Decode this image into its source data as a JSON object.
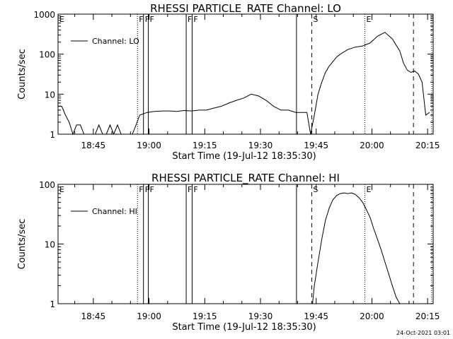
{
  "chart_data": [
    {
      "type": "line",
      "title": "RHESSI PARTICLE_RATE Channel: LO",
      "xlabel": "Start Time (19-Jul-12 18:35:30)",
      "ylabel": "Counts/sec",
      "log_y": true,
      "ylim": [
        1,
        1000
      ],
      "xlim_minutes": [
        0,
        101
      ],
      "x_ticks": [
        "18:45",
        "19:00",
        "19:15",
        "19:30",
        "19:45",
        "20:00",
        "20:15"
      ],
      "y_ticks": [
        "1",
        "10",
        "100",
        "1000"
      ],
      "legend": "Channel: LO",
      "legend_position": "top-left",
      "markers": [
        {
          "label": "E",
          "t": 0.0,
          "style": "none"
        },
        {
          "label": "F",
          "t": 21.4,
          "style": "dotted"
        },
        {
          "label": "F",
          "t": 23.0,
          "style": "solid"
        },
        {
          "label": "F",
          "t": 24.3,
          "style": "solid"
        },
        {
          "label": "F",
          "t": 34.5,
          "style": "solid"
        },
        {
          "label": "F",
          "t": 36.1,
          "style": "solid"
        },
        {
          "label": "",
          "t": 64.2,
          "style": "solid"
        },
        {
          "label": "S",
          "t": 68.3,
          "style": "dashed"
        },
        {
          "label": "E",
          "t": 82.6,
          "style": "dotted"
        },
        {
          "label": "",
          "t": 95.7,
          "style": "dashed"
        },
        {
          "label": "",
          "t": 100.6,
          "style": "dotted"
        }
      ],
      "series": [
        {
          "x": [
            0,
            1,
            2,
            3,
            4,
            5,
            6,
            7,
            8,
            9,
            10,
            11,
            12,
            13,
            14,
            15,
            16,
            17,
            18,
            19,
            20,
            21,
            22,
            24,
            26,
            28,
            30,
            32,
            34,
            36,
            38,
            40,
            42,
            44,
            46,
            48,
            50,
            52,
            54,
            56,
            58,
            60,
            62,
            64,
            66,
            67,
            68,
            69,
            70,
            71,
            72,
            73,
            74,
            75,
            76,
            78,
            80,
            82,
            84,
            86,
            88,
            90,
            92,
            93,
            94,
            95,
            96,
            97,
            98,
            99,
            100
          ],
          "y": [
            5,
            5,
            3,
            2,
            1,
            1.7,
            1.7,
            1,
            1,
            1,
            1,
            1.7,
            1,
            1,
            1.7,
            1,
            1.7,
            1,
            1,
            1,
            1,
            1.7,
            3,
            3.5,
            3.7,
            3.8,
            3.8,
            3.7,
            3.9,
            3.8,
            4,
            4,
            4.5,
            5,
            6,
            7,
            8,
            10,
            9,
            7,
            5,
            4,
            4,
            3.5,
            3.5,
            3.5,
            1,
            3,
            10,
            20,
            35,
            50,
            65,
            85,
            100,
            130,
            150,
            160,
            190,
            280,
            350,
            240,
            120,
            60,
            40,
            35,
            38,
            32,
            20,
            3,
            3.5
          ]
        }
      ]
    },
    {
      "type": "line",
      "title": "RHESSI PARTICLE_RATE Channel: HI",
      "xlabel": "Start Time (19-Jul-12 18:35:30)",
      "ylabel": "Counts/sec",
      "log_y": true,
      "ylim": [
        1,
        100
      ],
      "xlim_minutes": [
        0,
        101
      ],
      "x_ticks": [
        "18:45",
        "19:00",
        "19:15",
        "19:30",
        "19:45",
        "20:00",
        "20:15"
      ],
      "y_ticks": [
        "1",
        "10",
        "100"
      ],
      "legend": "Channel: HI",
      "legend_position": "top-left",
      "markers": [
        {
          "label": "E",
          "t": 0.0,
          "style": "none"
        },
        {
          "label": "F",
          "t": 21.4,
          "style": "dotted"
        },
        {
          "label": "F",
          "t": 23.0,
          "style": "solid"
        },
        {
          "label": "F",
          "t": 24.3,
          "style": "solid"
        },
        {
          "label": "F",
          "t": 34.5,
          "style": "solid"
        },
        {
          "label": "F",
          "t": 36.1,
          "style": "solid"
        },
        {
          "label": "",
          "t": 64.2,
          "style": "solid"
        },
        {
          "label": "S",
          "t": 68.3,
          "style": "dashed"
        },
        {
          "label": "E",
          "t": 82.6,
          "style": "dotted"
        },
        {
          "label": "",
          "t": 95.7,
          "style": "dashed"
        },
        {
          "label": "",
          "t": 100.6,
          "style": "dotted"
        }
      ],
      "series": [
        {
          "x": [
            68.5,
            69,
            70,
            71,
            72,
            73,
            74,
            75,
            76,
            77,
            78,
            79,
            80,
            81,
            82,
            83,
            84,
            85,
            86,
            87,
            88,
            89,
            90,
            91,
            92
          ],
          "y": [
            1,
            2,
            5,
            12,
            25,
            40,
            55,
            65,
            70,
            72,
            70,
            72,
            68,
            60,
            50,
            38,
            28,
            18,
            12,
            8,
            5,
            3.2,
            2,
            1.3,
            1
          ]
        }
      ]
    }
  ],
  "stamp": "24-Oct-2021 03:01"
}
